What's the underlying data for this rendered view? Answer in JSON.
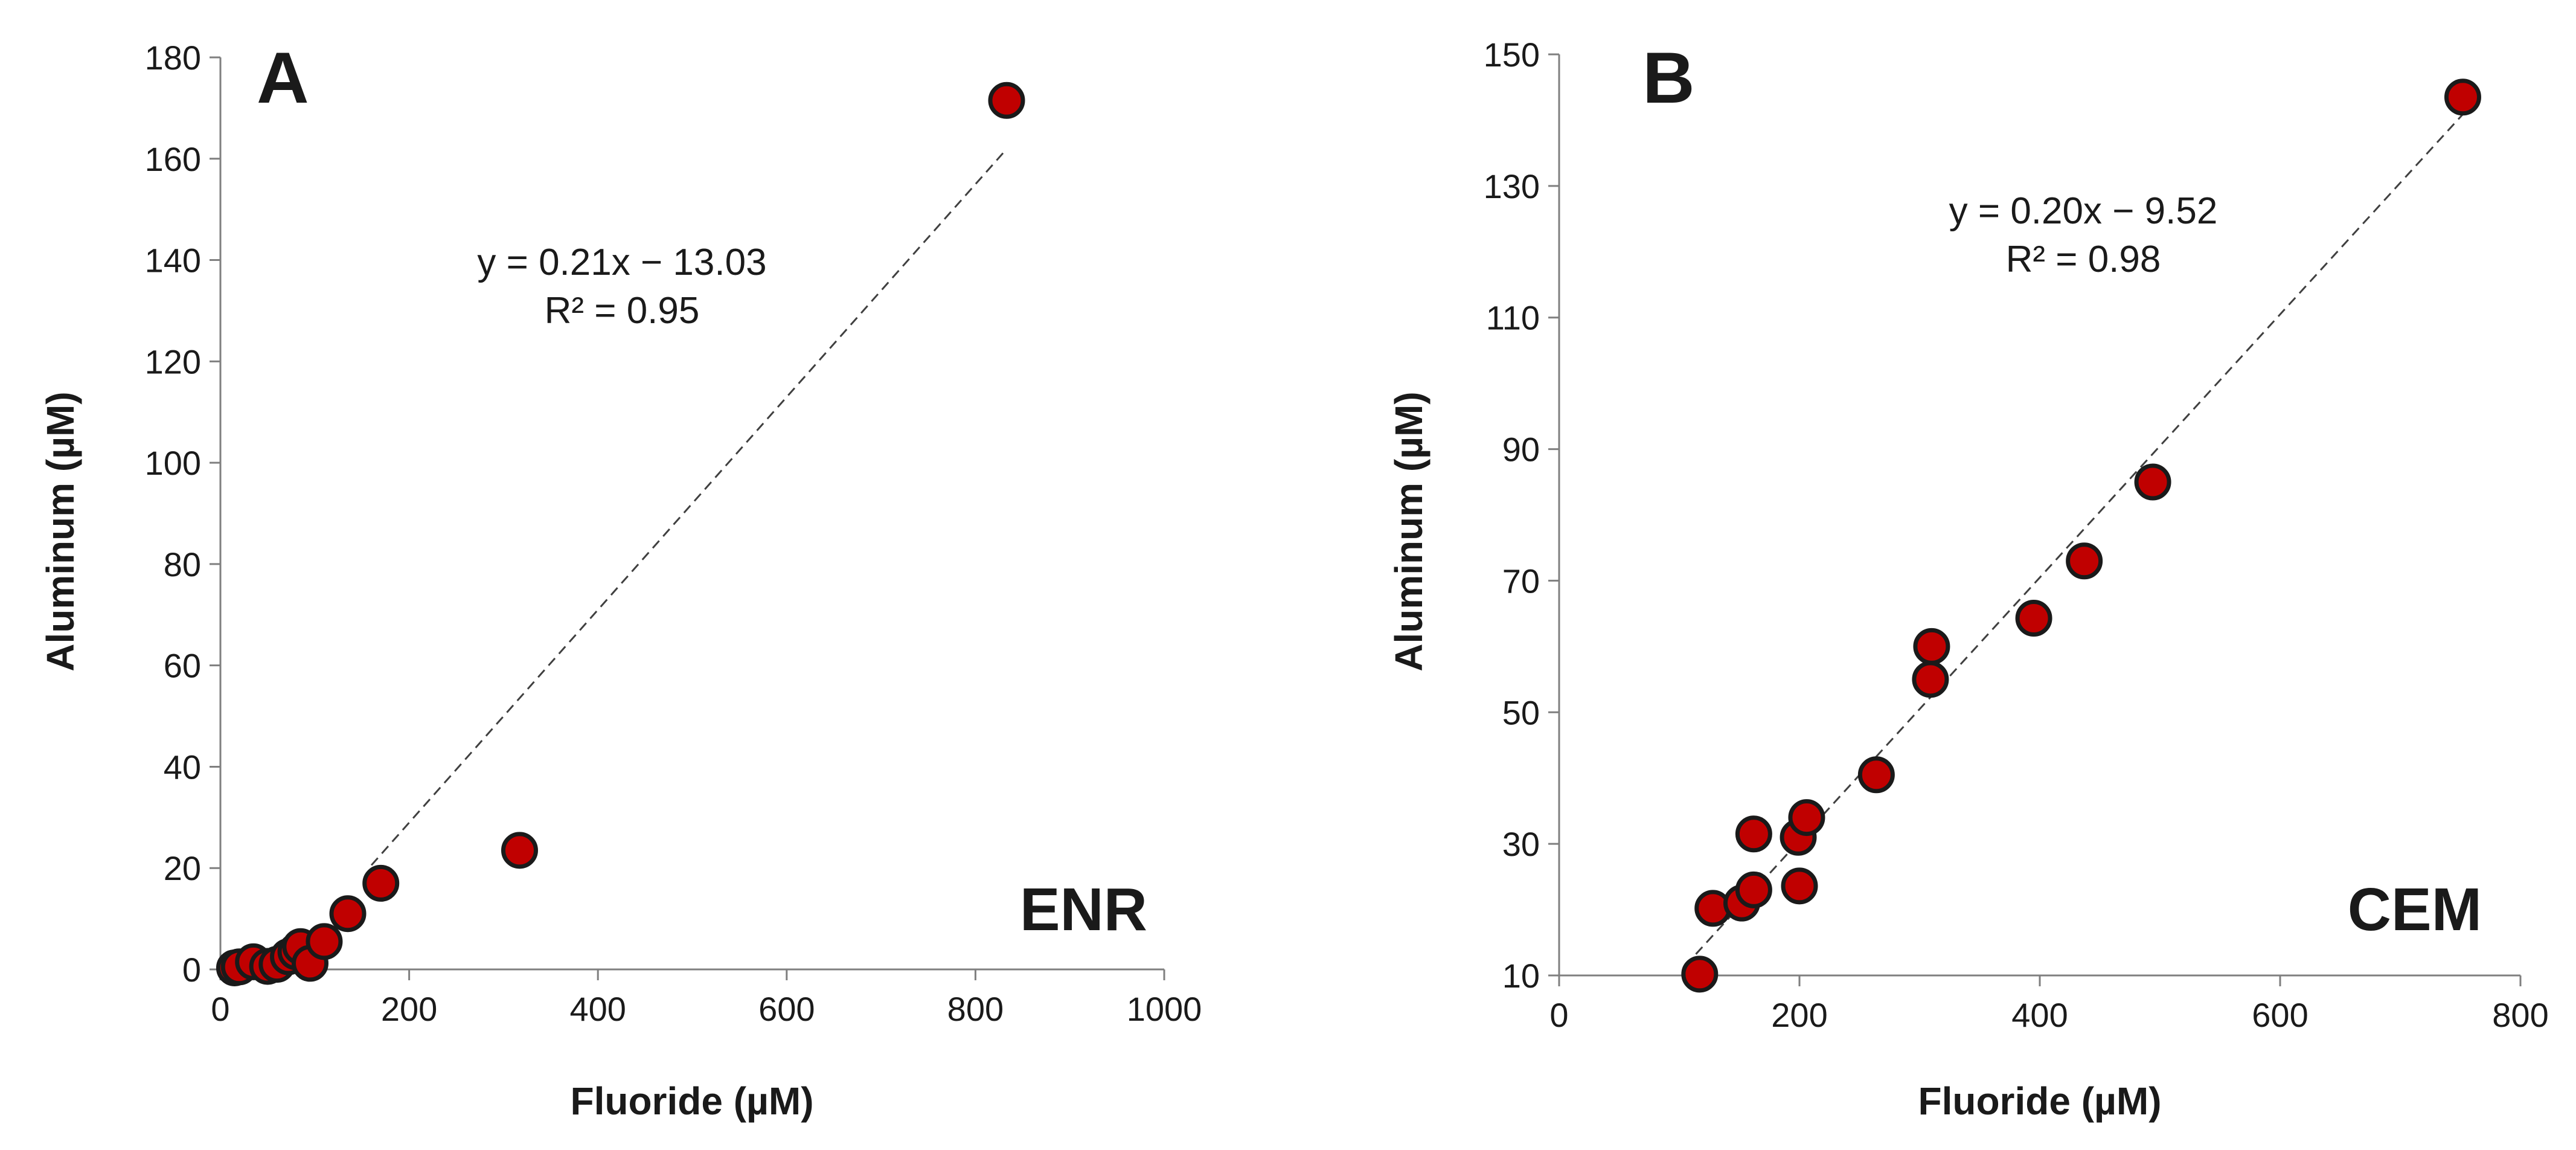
{
  "colors": {
    "point_fill": "#C00000",
    "point_stroke": "#1a1a1a",
    "axis": "#7f7f7f",
    "trendline": "#404040"
  },
  "chart_data": [
    {
      "type": "scatter",
      "panel_label": "A",
      "tag": "ENR",
      "xlabel": "Fluoride (µM)",
      "ylabel": "Aluminum (µM)",
      "xlim": [
        0,
        1000
      ],
      "ylim": [
        0,
        180
      ],
      "xticks": [
        0,
        200,
        400,
        600,
        800,
        1000
      ],
      "yticks": [
        0,
        20,
        40,
        60,
        80,
        100,
        120,
        140,
        160,
        180
      ],
      "grid": false,
      "points": [
        {
          "x": 15,
          "y": 0.3
        },
        {
          "x": 20,
          "y": 0.5
        },
        {
          "x": 35,
          "y": 1.5
        },
        {
          "x": 50,
          "y": 0.6
        },
        {
          "x": 60,
          "y": 1.0
        },
        {
          "x": 72,
          "y": 2.5
        },
        {
          "x": 80,
          "y": 3.5
        },
        {
          "x": 85,
          "y": 4.5
        },
        {
          "x": 95,
          "y": 1.2
        },
        {
          "x": 110,
          "y": 5.5
        },
        {
          "x": 135,
          "y": 11.0
        },
        {
          "x": 170,
          "y": 17.0
        },
        {
          "x": 317,
          "y": 23.5
        },
        {
          "x": 833,
          "y": 171.5
        }
      ],
      "trendline": {
        "slope": 0.21,
        "intercept": -13.03,
        "x_range": [
          160,
          833
        ]
      },
      "equation": "y = 0.21x − 13.03",
      "r_squared": "R² = 0.95"
    },
    {
      "type": "scatter",
      "panel_label": "B",
      "tag": "CEM",
      "xlabel": "Fluoride (µM)",
      "ylabel": "Aluminum (µM)",
      "xlim": [
        0,
        800
      ],
      "ylim": [
        10,
        150
      ],
      "xticks": [
        0,
        200,
        400,
        600,
        800
      ],
      "yticks": [
        10,
        30,
        50,
        70,
        90,
        110,
        130,
        150
      ],
      "grid": false,
      "points": [
        {
          "x": 117,
          "y": 10.2
        },
        {
          "x": 128,
          "y": 20.2
        },
        {
          "x": 152,
          "y": 21.0
        },
        {
          "x": 162,
          "y": 23.0
        },
        {
          "x": 162,
          "y": 31.5
        },
        {
          "x": 199,
          "y": 31.0
        },
        {
          "x": 200,
          "y": 23.6
        },
        {
          "x": 206,
          "y": 34.0
        },
        {
          "x": 264,
          "y": 40.5
        },
        {
          "x": 309,
          "y": 55.0
        },
        {
          "x": 310,
          "y": 60.0
        },
        {
          "x": 395,
          "y": 64.3
        },
        {
          "x": 437,
          "y": 73.0
        },
        {
          "x": 494,
          "y": 85.0
        },
        {
          "x": 752,
          "y": 143.5
        }
      ],
      "trendline": {
        "slope": 0.2,
        "intercept": -9.52,
        "x_range": [
          105,
          752
        ]
      },
      "equation": "y = 0.20x − 9.52",
      "r_squared": "R² = 0.98"
    }
  ]
}
